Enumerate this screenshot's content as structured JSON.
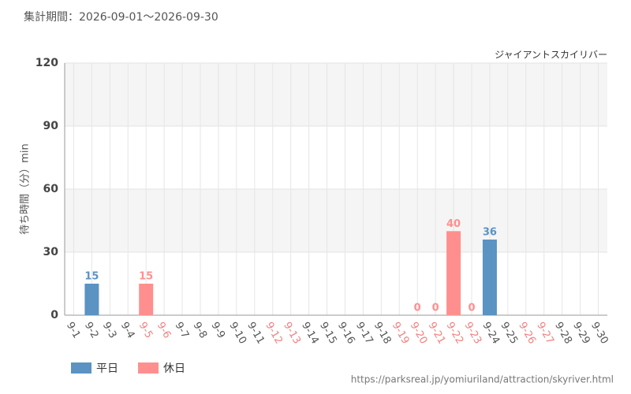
{
  "chart_data": {
    "type": "bar",
    "title": "集計期間：2026-09-01〜2026-09-30",
    "subtitle": "ジャイアントスカイリバー",
    "y_label": "待ち時間（分）min",
    "source": "https://parksreal.jp/yomiuriland/attraction/skyriver.html",
    "categories": [
      "9-1",
      "9-2",
      "9-3",
      "9-4",
      "9-5",
      "9-6",
      "9-7",
      "9-8",
      "9-9",
      "9-10",
      "9-11",
      "9-12",
      "9-13",
      "9-14",
      "9-15",
      "9-16",
      "9-17",
      "9-18",
      "9-19",
      "9-20",
      "9-21",
      "9-22",
      "9-23",
      "9-24",
      "9-25",
      "9-26",
      "9-27",
      "9-28",
      "9-29",
      "9-30"
    ],
    "label_colors": [
      "#555",
      "#555",
      "#555",
      "#555",
      "#f08080",
      "#f08080",
      "#555",
      "#555",
      "#555",
      "#555",
      "#555",
      "#f08080",
      "#f08080",
      "#555",
      "#555",
      "#555",
      "#555",
      "#555",
      "#f08080",
      "#f08080",
      "#f08080",
      "#f08080",
      "#f08080",
      "#555",
      "#555",
      "#f08080",
      "#f08080",
      "#555",
      "#555",
      "#555"
    ],
    "series": [
      {
        "name": "平日",
        "color": "#5b93c2",
        "values": [
          null,
          15,
          null,
          null,
          null,
          null,
          null,
          null,
          null,
          null,
          null,
          null,
          null,
          null,
          null,
          null,
          null,
          null,
          null,
          null,
          null,
          null,
          null,
          36,
          null,
          null,
          null,
          null,
          null,
          null
        ]
      },
      {
        "name": "休日",
        "color": "#ff8f8f",
        "values": [
          null,
          null,
          null,
          null,
          15,
          null,
          null,
          null,
          null,
          null,
          null,
          null,
          null,
          null,
          null,
          null,
          null,
          null,
          null,
          0,
          0,
          40,
          0,
          null,
          null,
          null,
          null,
          null,
          null,
          null
        ]
      }
    ],
    "ylim": [
      0,
      120
    ],
    "yticks": [
      0,
      30,
      60,
      90,
      120
    ],
    "grid": true
  }
}
